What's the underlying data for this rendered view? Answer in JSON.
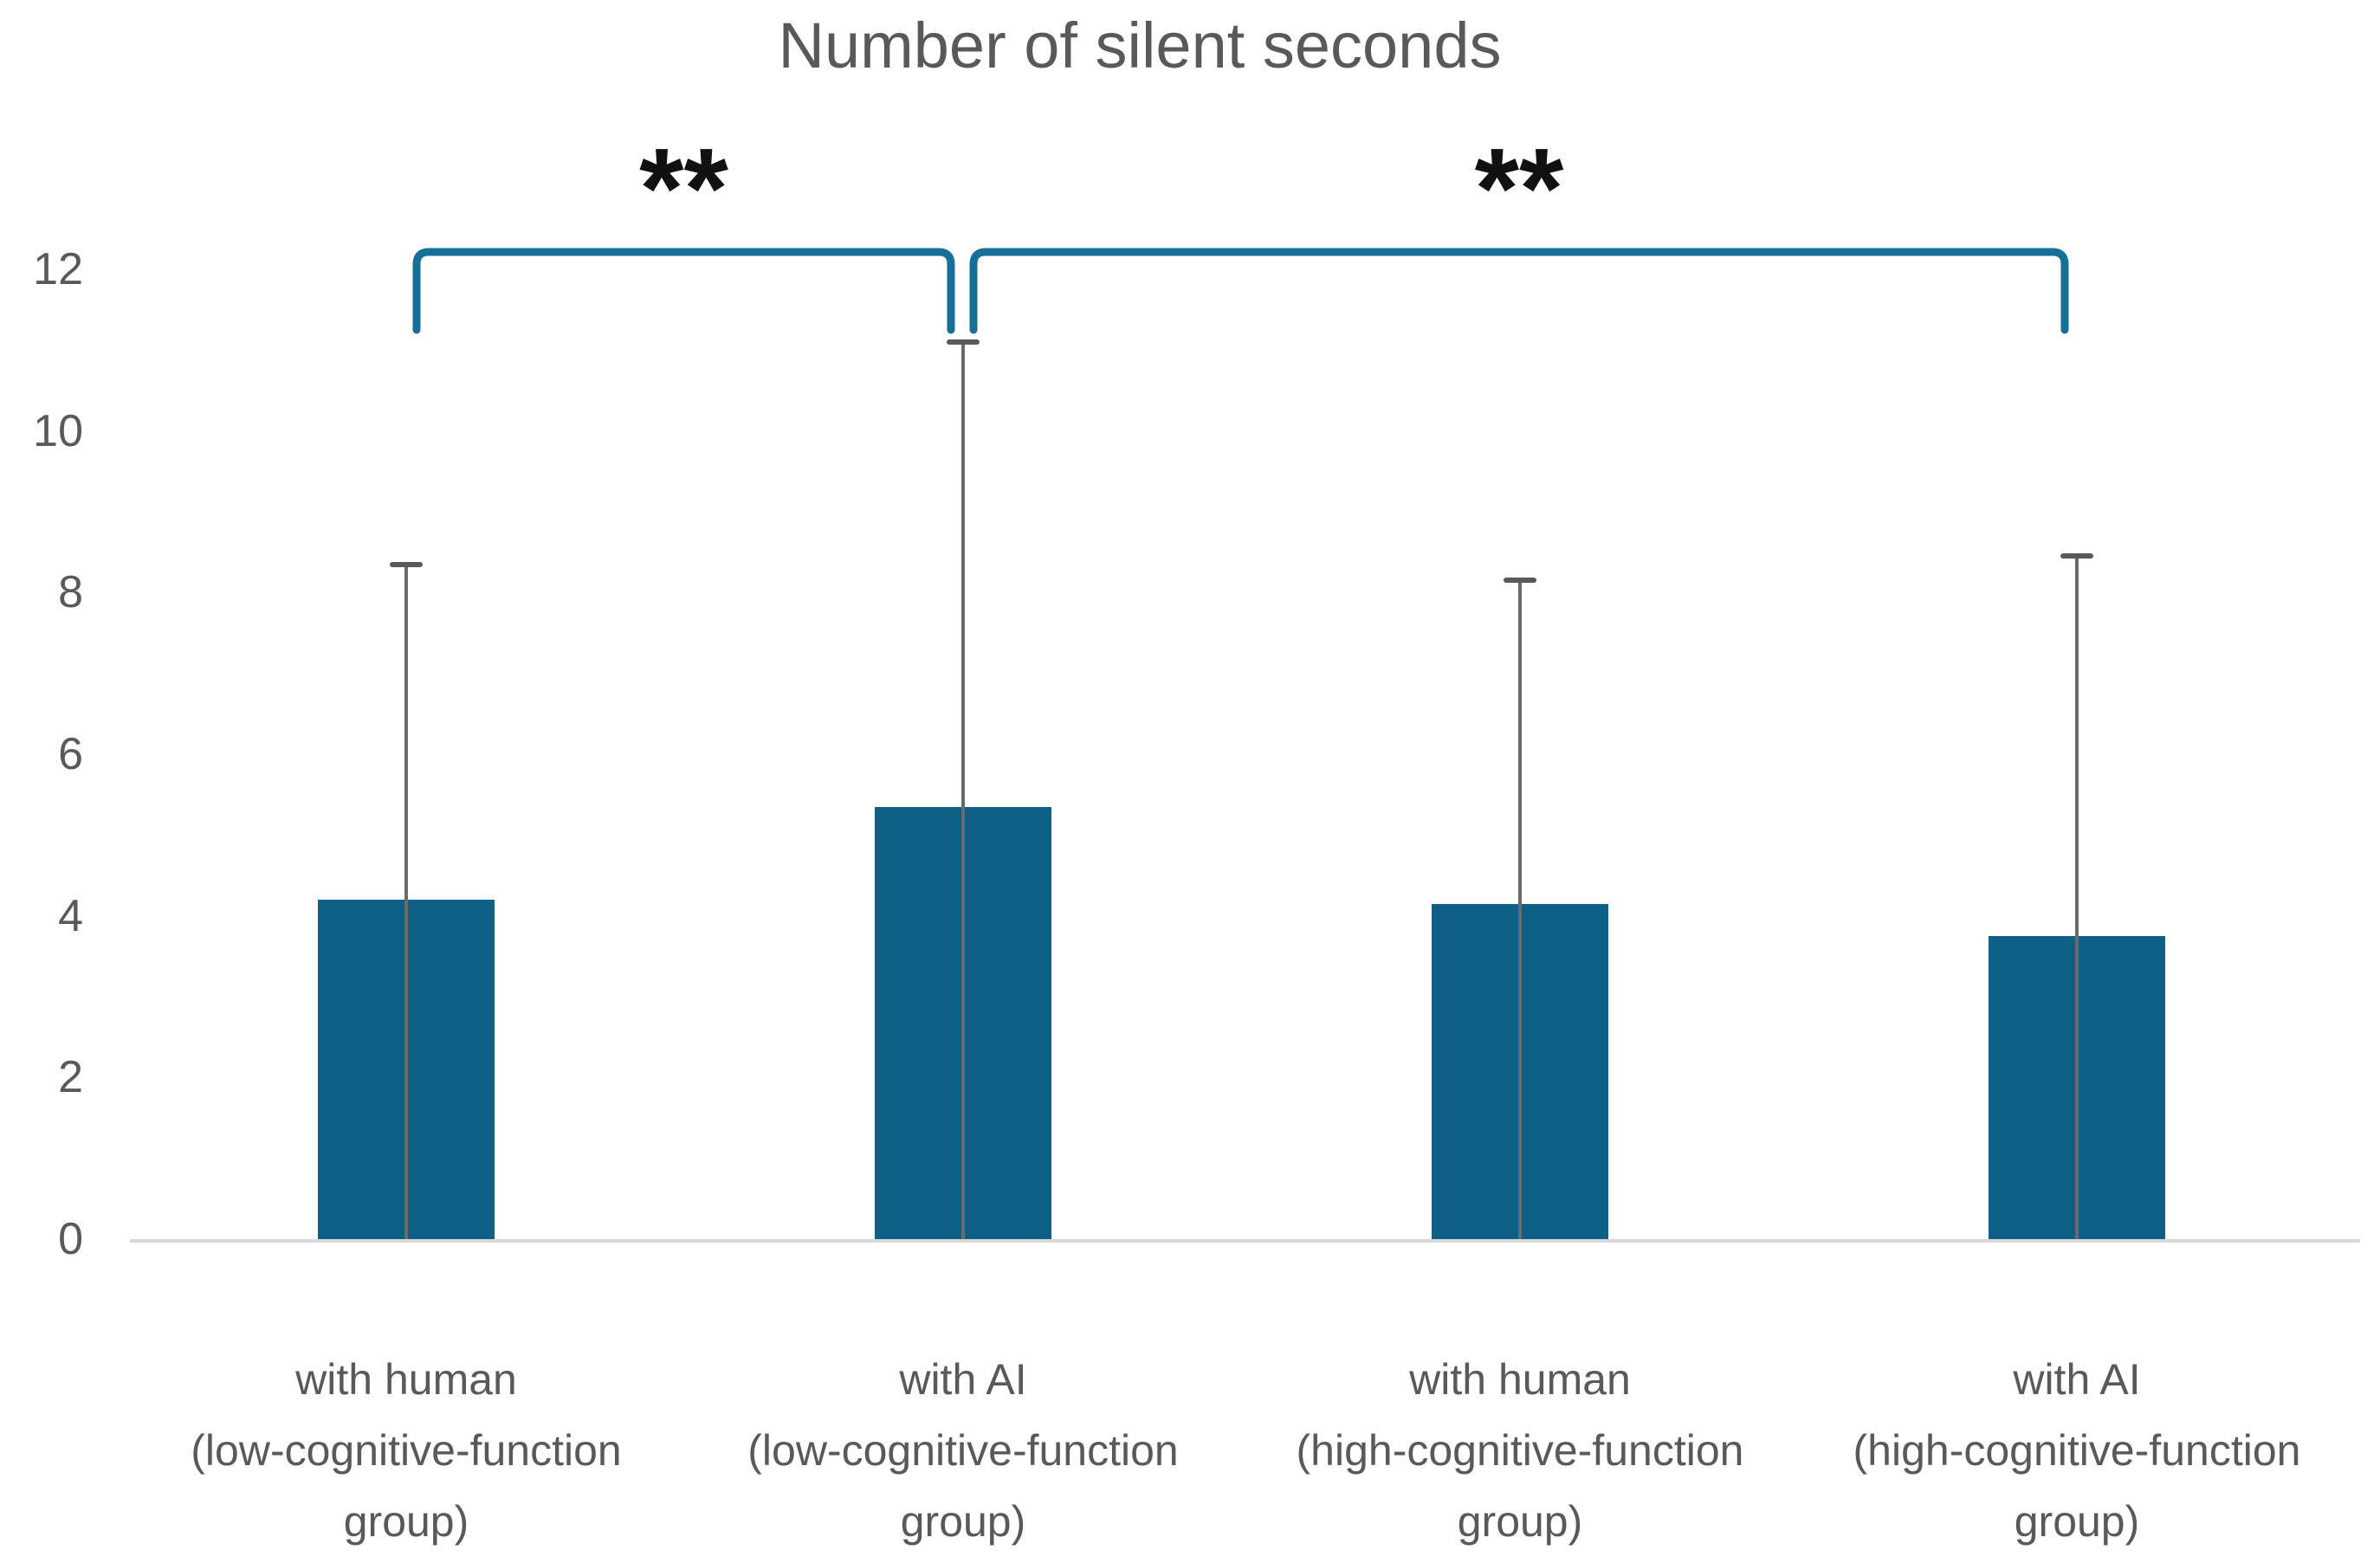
{
  "title": "Number of silent seconds",
  "chart_data": {
    "type": "bar",
    "title": "Number of silent seconds",
    "categories": [
      [
        "with human",
        "(low-cognitive-function",
        "group)"
      ],
      [
        "with AI",
        "(low-cognitive-function",
        "group)"
      ],
      [
        "with human",
        "(high-cognitive-function",
        "group)"
      ],
      [
        "with AI",
        "(high-cognitive-function",
        "group)"
      ]
    ],
    "values": [
      4.2,
      5.35,
      4.15,
      3.75
    ],
    "error_bar_tops": [
      8.35,
      11.1,
      8.15,
      8.45
    ],
    "y_ticks": [
      0,
      2,
      4,
      6,
      8,
      10,
      12
    ],
    "ylim": [
      0,
      12.5
    ],
    "xlabel": "",
    "ylabel": "",
    "grid": "off",
    "legend": "none",
    "bar_color": "#0d5f86",
    "error_bar_color": "#6a6a6a",
    "axis_line_color": "#d9d9d9",
    "text_color": "#595959",
    "bracket_color": "#156f96",
    "significance": [
      {
        "from": 0,
        "to": 1,
        "label": "**"
      },
      {
        "from": 1,
        "to": 3,
        "label": "**"
      }
    ]
  }
}
